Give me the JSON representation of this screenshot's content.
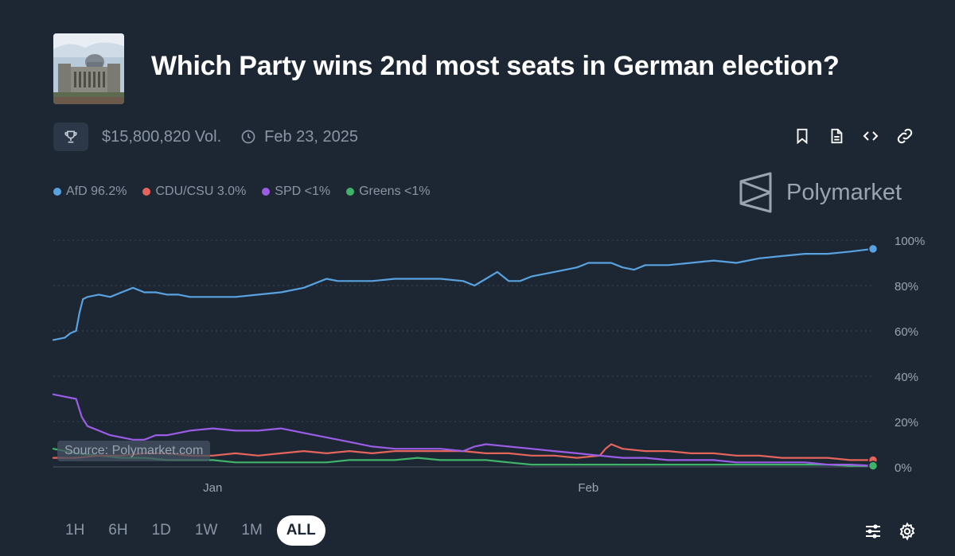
{
  "market": {
    "title": "Which Party wins 2nd most seats in German election?",
    "volume": "$15,800,820 Vol.",
    "end_date": "Feb 23, 2025"
  },
  "icons": {
    "thumbnail": "reichstag-building-image",
    "trophy": "trophy-icon",
    "clock": "clock-icon",
    "actions": [
      "bookmark-icon",
      "document-icon",
      "embed-code-icon",
      "link-icon"
    ],
    "bottom": [
      "sliders-icon",
      "gear-icon"
    ]
  },
  "brand": {
    "name": "Polymarket"
  },
  "source_label": "Source: Polymarket.com",
  "timeframes": [
    "1H",
    "6H",
    "1D",
    "1W",
    "1M",
    "ALL"
  ],
  "active_timeframe": "ALL",
  "colors": {
    "background": "#1d2734",
    "afd": "#58a2e0",
    "cdu": "#e5645b",
    "spd": "#9b5de5",
    "greens": "#3fb468"
  },
  "chart_data": {
    "type": "line",
    "title": "",
    "xlabel": "",
    "ylabel": "",
    "ylim": [
      0,
      100
    ],
    "y_ticks": [
      "100%",
      "80%",
      "60%",
      "40%",
      "20%",
      "0%"
    ],
    "x_ticks": [
      "Jan",
      "Feb"
    ],
    "x_range_days": [
      0,
      72
    ],
    "x_tick_days": [
      14,
      47
    ],
    "grid": true,
    "legend_position": "top-left",
    "legend": [
      {
        "name": "AfD",
        "label": "AfD 96.2%",
        "color": "#58a2e0"
      },
      {
        "name": "CDU/CSU",
        "label": "CDU/CSU 3.0%",
        "color": "#e5645b"
      },
      {
        "name": "SPD",
        "label": "SPD <1%",
        "color": "#9b5de5"
      },
      {
        "name": "Greens",
        "label": "Greens <1%",
        "color": "#3fb468"
      }
    ],
    "series": [
      {
        "name": "AfD",
        "color": "#58a2e0",
        "x": [
          0,
          1,
          1.5,
          2,
          2.3,
          2.6,
          3,
          4,
          5,
          6,
          7,
          8,
          9,
          10,
          11,
          12,
          14,
          16,
          18,
          20,
          22,
          24,
          25,
          26,
          27,
          28,
          30,
          32,
          34,
          36,
          37,
          38,
          39,
          40,
          41,
          42,
          44,
          46,
          47,
          48,
          49,
          50,
          51,
          52,
          54,
          56,
          58,
          60,
          62,
          64,
          66,
          68,
          70,
          72
        ],
        "values": [
          56,
          57,
          59,
          60,
          68,
          74,
          75,
          76,
          75,
          77,
          79,
          77,
          77,
          76,
          76,
          75,
          75,
          75,
          76,
          77,
          79,
          83,
          82,
          82,
          82,
          82,
          83,
          83,
          83,
          82,
          80,
          83,
          86,
          82,
          82,
          84,
          86,
          88,
          90,
          90,
          90,
          88,
          87,
          89,
          89,
          90,
          91,
          90,
          92,
          93,
          94,
          94,
          95,
          96.2
        ]
      },
      {
        "name": "CDU/CSU",
        "color": "#e5645b",
        "x": [
          0,
          2,
          4,
          6,
          8,
          10,
          12,
          14,
          16,
          18,
          20,
          22,
          24,
          26,
          28,
          30,
          32,
          34,
          36,
          38,
          40,
          42,
          44,
          46,
          48,
          48.5,
          49,
          50,
          52,
          54,
          56,
          58,
          60,
          62,
          64,
          66,
          68,
          70,
          72
        ],
        "values": [
          4,
          4,
          5,
          5,
          6,
          6,
          5,
          5,
          6,
          5,
          6,
          7,
          6,
          7,
          6,
          7,
          7,
          7,
          7,
          6,
          6,
          5,
          5,
          4,
          5,
          8,
          10,
          8,
          7,
          7,
          6,
          6,
          5,
          5,
          4,
          4,
          4,
          3,
          3
        ]
      },
      {
        "name": "SPD",
        "color": "#9b5de5",
        "x": [
          0,
          1,
          2,
          2.5,
          3,
          4,
          5,
          6,
          7,
          8,
          9,
          10,
          11,
          12,
          14,
          16,
          18,
          20,
          22,
          24,
          26,
          28,
          30,
          32,
          34,
          36,
          37,
          38,
          40,
          42,
          44,
          46,
          48,
          50,
          52,
          54,
          56,
          58,
          60,
          62,
          64,
          66,
          68,
          70,
          72
        ],
        "values": [
          32,
          31,
          30,
          22,
          18,
          16,
          14,
          13,
          12,
          12,
          14,
          14,
          15,
          16,
          17,
          16,
          16,
          17,
          15,
          13,
          11,
          9,
          8,
          8,
          8,
          7,
          9,
          10,
          9,
          8,
          7,
          6,
          5,
          4,
          4,
          3,
          3,
          3,
          2,
          2,
          2,
          2,
          1,
          1,
          0.5
        ]
      },
      {
        "name": "Greens",
        "color": "#3fb468",
        "x": [
          0,
          1,
          2,
          4,
          6,
          8,
          10,
          12,
          14,
          16,
          18,
          20,
          22,
          24,
          26,
          28,
          30,
          32,
          34,
          36,
          38,
          40,
          42,
          44,
          46,
          48,
          50,
          52,
          54,
          56,
          58,
          60,
          62,
          64,
          66,
          68,
          70,
          72
        ],
        "values": [
          8,
          7,
          6,
          5,
          4,
          4,
          3,
          3,
          3,
          2,
          2,
          2,
          2,
          2,
          3,
          3,
          3,
          4,
          3,
          3,
          3,
          2,
          1,
          1,
          1,
          1,
          1,
          1,
          1,
          1,
          1,
          1,
          1,
          1,
          1,
          1,
          0.5,
          0.5
        ]
      }
    ]
  }
}
